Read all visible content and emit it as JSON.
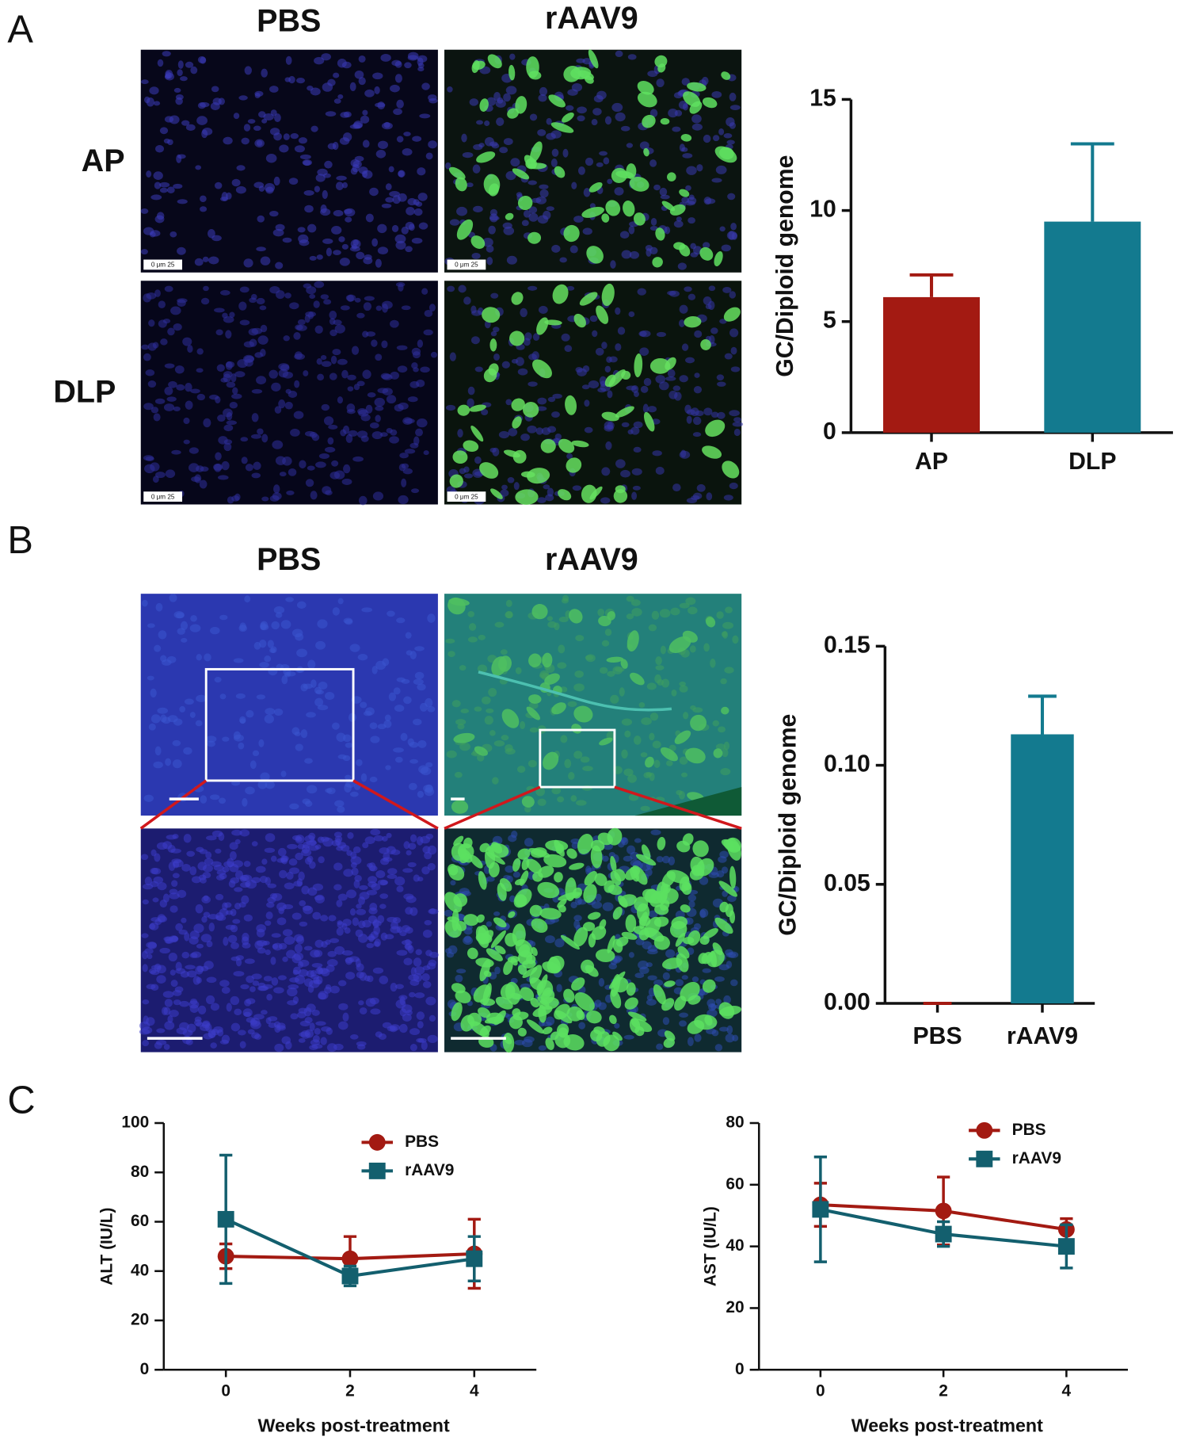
{
  "panels": {
    "A": {
      "label": "A",
      "columns": [
        "PBS",
        "rAAV9"
      ],
      "rows": [
        "AP",
        "DLP"
      ]
    },
    "B": {
      "label": "B",
      "columns": [
        "PBS",
        "rAAV9"
      ]
    },
    "C": {
      "label": "C"
    }
  },
  "scale_label": "0 μm 25",
  "chart_data": [
    {
      "type": "bar",
      "ylabel": "GC/Diploid genome",
      "categories": [
        "AP",
        "DLP"
      ],
      "values": [
        6.1,
        9.5
      ],
      "errors": [
        1.0,
        3.5
      ],
      "colors": [
        "#a31a12",
        "#137a8f"
      ],
      "ylim": [
        0,
        15
      ],
      "yticks": [
        0,
        5,
        10,
        15
      ]
    },
    {
      "type": "bar",
      "ylabel": "GC/Diploid genome",
      "categories": [
        "PBS",
        "rAAV9"
      ],
      "values": [
        0,
        0.113
      ],
      "errors": [
        0,
        0.016
      ],
      "colors": [
        "#a31a12",
        "#137a8f"
      ],
      "ylim": [
        0,
        0.15
      ],
      "yticks": [
        {
          "value": 0,
          "label": "0.00"
        },
        0.05,
        {
          "value": 0.1,
          "label": "0.10"
        },
        0.15
      ]
    },
    {
      "type": "line",
      "ylabel": "ALT (IU/L)",
      "xlabel": "Weeks post-treatment",
      "x": [
        0,
        2,
        4
      ],
      "xlim": [
        -1,
        5
      ],
      "xticks": [
        0,
        2,
        4
      ],
      "ylim": [
        0,
        100
      ],
      "yticks": [
        0,
        20,
        40,
        60,
        80,
        100
      ],
      "series": [
        {
          "name": "PBS",
          "color": "#a31a12",
          "marker": "circle",
          "values": [
            46,
            45,
            47
          ],
          "errors": [
            5,
            9,
            14
          ]
        },
        {
          "name": "rAAV9",
          "color": "#135f6e",
          "marker": "square",
          "values": [
            61,
            38,
            45
          ],
          "errors": [
            26,
            4,
            9
          ]
        }
      ]
    },
    {
      "type": "line",
      "ylabel": "AST (IU/L)",
      "xlabel": "Weeks post-treatment",
      "x": [
        0,
        2,
        4
      ],
      "xlim": [
        -1,
        5
      ],
      "xticks": [
        0,
        2,
        4
      ],
      "ylim": [
        0,
        80
      ],
      "yticks": [
        0,
        20,
        40,
        60,
        80
      ],
      "series": [
        {
          "name": "PBS",
          "color": "#a31a12",
          "marker": "circle",
          "values": [
            53.5,
            51.5,
            45.5
          ],
          "errors": [
            7,
            11,
            3.5
          ]
        },
        {
          "name": "rAAV9",
          "color": "#135f6e",
          "marker": "square",
          "values": [
            52,
            44,
            40
          ],
          "errors": [
            17,
            4,
            7
          ]
        }
      ]
    }
  ]
}
